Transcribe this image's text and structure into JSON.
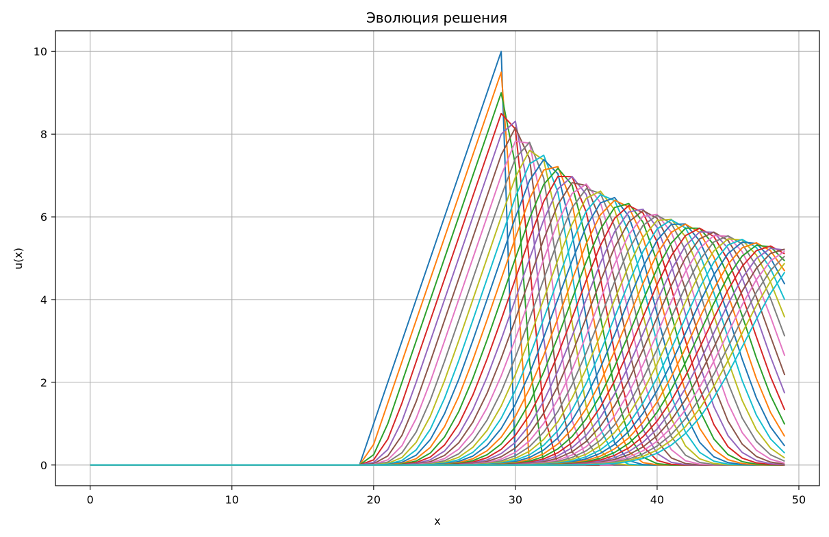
{
  "chart_data": {
    "type": "line",
    "title": "Эволюция решения",
    "xlabel": "x",
    "ylabel": "u(x)",
    "xlim": [
      -2.45,
      51.45
    ],
    "ylim": [
      -0.5,
      10.5
    ],
    "xticks": [
      0,
      10,
      20,
      30,
      40,
      50
    ],
    "yticks": [
      0,
      2,
      4,
      6,
      8,
      10
    ],
    "grid": true,
    "legend": "none",
    "n_points": 50,
    "n_series": 50,
    "initial_profile": {
      "description_values": "triangle: 0 up to x=19, linear rise to 10 at x=29, 0 after",
      "x": [
        0,
        19,
        29,
        30,
        49
      ],
      "y": [
        0,
        0,
        10,
        0,
        0
      ]
    },
    "peak_trajectory": {
      "x": [
        29,
        29,
        29,
        29,
        30,
        31,
        32,
        33,
        34,
        35,
        36,
        37,
        38,
        39,
        40,
        41,
        42,
        43,
        44,
        45,
        46,
        47,
        48,
        49
      ],
      "y": [
        10.0,
        9.5,
        9.0,
        8.5,
        8.3,
        7.8,
        7.5,
        7.2,
        7.0,
        6.8,
        6.6,
        6.45,
        6.3,
        6.15,
        6.0,
        5.9,
        5.8,
        5.7,
        5.6,
        5.5,
        5.4,
        5.33,
        5.27,
        5.2
      ]
    },
    "colors": [
      "#1f77b4",
      "#ff7f0e",
      "#2ca02c",
      "#d62728",
      "#9467bd",
      "#8c564b",
      "#e377c2",
      "#7f7f7f",
      "#bcbd22",
      "#17becf"
    ]
  }
}
